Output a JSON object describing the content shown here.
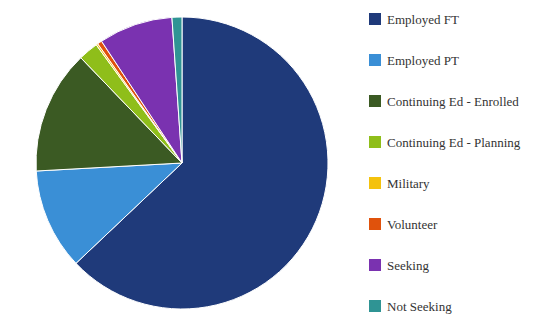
{
  "chart_data": {
    "type": "pie",
    "categories": [
      "Employed FT",
      "Employed PT",
      "Continuing Ed - Enrolled",
      "Continuing Ed - Planning",
      "Military",
      "Volunteer",
      "Seeking",
      "Not Seeking"
    ],
    "values": [
      63.0,
      11.2,
      13.7,
      2.2,
      0.2,
      0.5,
      8.2,
      1.1
    ],
    "colors": [
      "#1f3a7a",
      "#3a8fd6",
      "#3b5a23",
      "#8fbe1a",
      "#f4c20d",
      "#e0520c",
      "#7a32b0",
      "#2f9494"
    ],
    "legend": "right",
    "data_labels": false
  }
}
